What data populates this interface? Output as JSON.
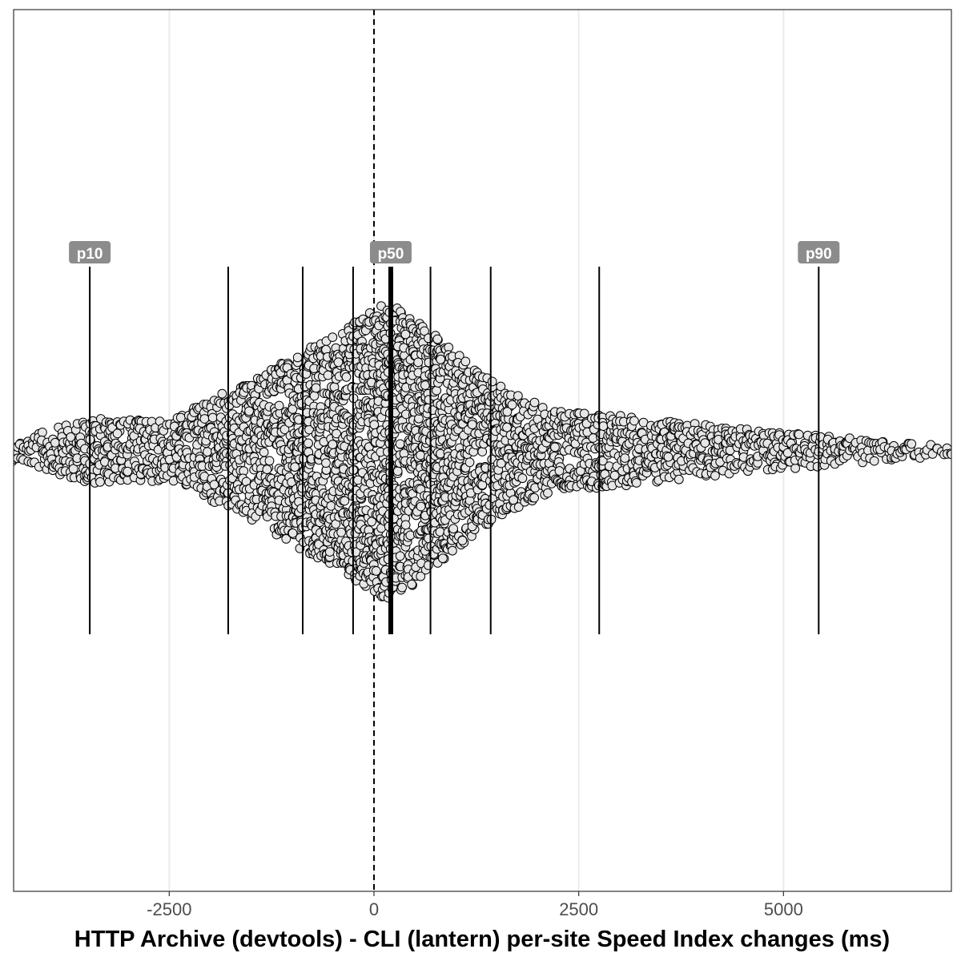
{
  "chart_data": {
    "type": "beeswarm",
    "xlabel": "HTTP Archive (devtools) - CLI (lantern) per-site Speed Index changes (ms)",
    "xlim": [
      -4400,
      7050
    ],
    "x_ticks": [
      -2500,
      0,
      2500,
      5000
    ],
    "x_tick_labels": [
      "-2500",
      "0",
      "2500",
      "5000"
    ],
    "grid": "vertical major gridlines",
    "zero_line": {
      "x": 0,
      "style": "dashed"
    },
    "percentile_lines": [
      {
        "name": "p10",
        "value": -3470,
        "label": "p10",
        "emphasis": false
      },
      {
        "name": "p20",
        "value": -1780,
        "label": "",
        "emphasis": false
      },
      {
        "name": "p30",
        "value": -870,
        "label": "",
        "emphasis": false
      },
      {
        "name": "p40",
        "value": -255,
        "label": "",
        "emphasis": false
      },
      {
        "name": "p50",
        "value": 205,
        "label": "p50",
        "emphasis": true
      },
      {
        "name": "p60",
        "value": 690,
        "label": "",
        "emphasis": false
      },
      {
        "name": "p70",
        "value": 1425,
        "label": "",
        "emphasis": false
      },
      {
        "name": "p80",
        "value": 2750,
        "label": "",
        "emphasis": false
      },
      {
        "name": "p90",
        "value": 5430,
        "label": "p90",
        "emphasis": false
      }
    ],
    "point_style": {
      "fill": "#e6e6e6",
      "stroke": "#000000"
    },
    "distribution": {
      "description": "Per-site Speed Index change values, densest near the median",
      "x_range": [
        -4400,
        7050
      ],
      "density_profile": [
        {
          "x": -4400,
          "relative_width": 0.07
        },
        {
          "x": -3470,
          "relative_width": 0.22
        },
        {
          "x": -2500,
          "relative_width": 0.2
        },
        {
          "x": -2000,
          "relative_width": 0.35
        },
        {
          "x": -1500,
          "relative_width": 0.46
        },
        {
          "x": -900,
          "relative_width": 0.66
        },
        {
          "x": -500,
          "relative_width": 0.77
        },
        {
          "x": -100,
          "relative_width": 0.92
        },
        {
          "x": 150,
          "relative_width": 1.0
        },
        {
          "x": 500,
          "relative_width": 0.89
        },
        {
          "x": 1000,
          "relative_width": 0.66
        },
        {
          "x": 1500,
          "relative_width": 0.45
        },
        {
          "x": 2200,
          "relative_width": 0.27
        },
        {
          "x": 3000,
          "relative_width": 0.24
        },
        {
          "x": 4500,
          "relative_width": 0.15
        },
        {
          "x": 6000,
          "relative_width": 0.08
        },
        {
          "x": 7050,
          "relative_width": 0.03
        }
      ]
    }
  }
}
